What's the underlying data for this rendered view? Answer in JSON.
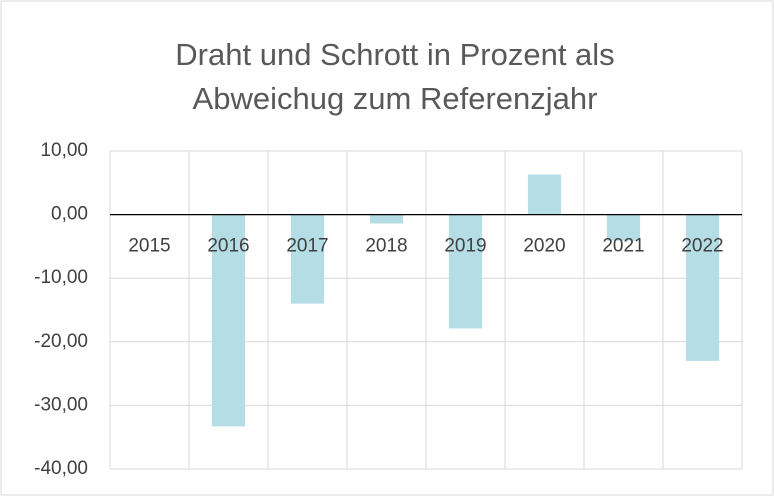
{
  "chart_data": {
    "type": "bar",
    "title": [
      "Draht und Schrott in Prozent als",
      "Abweichug zum Referenzjahr"
    ],
    "categories": [
      "2015",
      "2016",
      "2017",
      "2018",
      "2019",
      "2020",
      "2021",
      "2022"
    ],
    "values": [
      0,
      -33.3,
      -14.0,
      -1.4,
      -17.9,
      6.3,
      -4.1,
      -23.0
    ],
    "color": "#b4dde6",
    "ylim": [
      -40,
      10
    ],
    "yticks": [
      {
        "value": -40,
        "label": "-40,00"
      },
      {
        "value": -30,
        "label": "-30,00"
      },
      {
        "value": -20,
        "label": "-20,00"
      },
      {
        "value": -10,
        "label": "-10,00"
      },
      {
        "value": 0,
        "label": "0,00"
      },
      {
        "value": 10,
        "label": "10,00"
      }
    ],
    "grid": true
  }
}
